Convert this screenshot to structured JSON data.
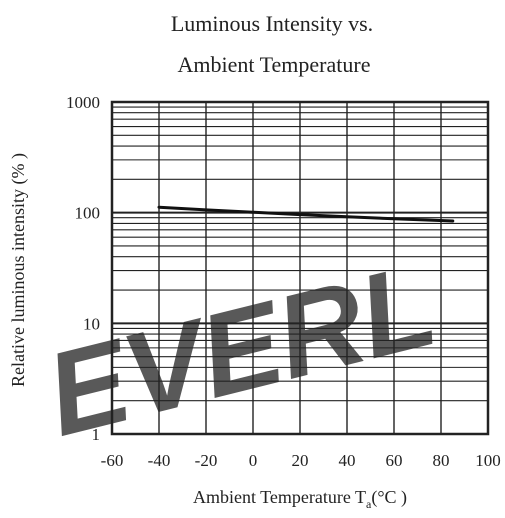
{
  "chart_data": {
    "type": "line",
    "title_lines": [
      "Luminous Intensity vs.",
      "Ambient Temperature"
    ],
    "xlabel": "Ambient Temperature T",
    "xlabel_subscript": "a",
    "xlabel_unit": "(°C )",
    "ylabel": "Relative luminous intensity (% )",
    "xlim": [
      -60,
      100
    ],
    "ylim": [
      1,
      1000
    ],
    "y_scale": "log",
    "x_ticks": [
      -60,
      -40,
      -20,
      0,
      20,
      40,
      60,
      80,
      100
    ],
    "x_tick_labels": [
      "-60",
      "-40",
      "-20",
      "0",
      "20",
      "40",
      "60",
      "80",
      "100"
    ],
    "y_ticks": [
      1,
      10,
      100,
      1000
    ],
    "y_tick_labels": [
      "1",
      "10",
      "100",
      "1000"
    ],
    "grid": true,
    "series": [
      {
        "x": [
          -40,
          -20,
          0,
          20,
          40,
          60,
          85
        ],
        "y": [
          112,
          106,
          101,
          96,
          92,
          88,
          84
        ]
      }
    ],
    "colors": {
      "line": "#111111",
      "grid": "#222222",
      "watermark": "#cfe0f2"
    }
  },
  "watermark": "EVERL"
}
